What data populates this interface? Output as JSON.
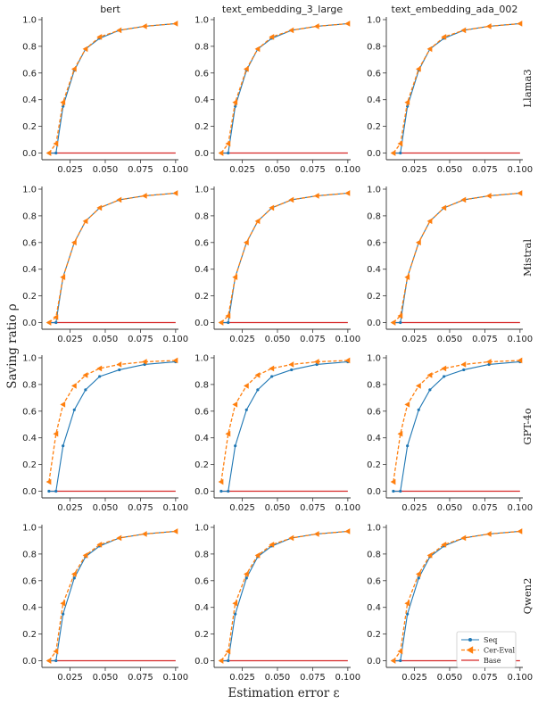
{
  "figure": {
    "xlabel": "Estimation error ε",
    "ylabel": "Saving ratio ρ"
  },
  "colors": {
    "seq": "#1f77b4",
    "cer_eval": "#ff7f0e",
    "base": "#d62728"
  },
  "columns": [
    "bert",
    "text_embedding_3_large",
    "text_embedding_ada_002"
  ],
  "rows": [
    "Llama3",
    "Mistral",
    "GPT-4o",
    "Qwen2"
  ],
  "legend": {
    "placement": "lower-right of bottom-right panel",
    "entries": [
      "Seq",
      "Cer-Eval",
      "Base"
    ]
  },
  "chart_data": {
    "type": "line",
    "layout": "4x3 small multiples",
    "xlim": [
      0.005,
      0.102
    ],
    "ylim": [
      -0.05,
      1.02
    ],
    "x_ticks": [
      "0.025",
      "0.050",
      "0.075",
      "0.100"
    ],
    "x_tick_values": [
      0.025,
      0.05,
      0.075,
      0.1
    ],
    "y_ticks": [
      "0.0",
      "0.2",
      "0.4",
      "0.6",
      "0.8",
      "1.0"
    ],
    "y_tick_values": [
      0,
      0.2,
      0.4,
      0.6,
      0.8,
      1.0
    ],
    "grid": false,
    "x": [
      0.01,
      0.015,
      0.02,
      0.028,
      0.036,
      0.046,
      0.06,
      0.078,
      0.1
    ],
    "panels": [
      {
        "row": "Llama3",
        "column": "bert",
        "series": [
          {
            "name": "Seq",
            "values": [
              0.0,
              0.0,
              0.35,
              0.62,
              0.78,
              0.86,
              0.92,
              0.95,
              0.97
            ]
          },
          {
            "name": "Cer-Eval",
            "values": [
              0.0,
              0.07,
              0.38,
              0.63,
              0.78,
              0.87,
              0.92,
              0.95,
              0.97
            ]
          },
          {
            "name": "Base",
            "values": [
              0.0,
              0.0,
              0.0,
              0.0,
              0.0,
              0.0,
              0.0,
              0.0,
              0.0
            ]
          }
        ]
      },
      {
        "row": "Llama3",
        "column": "text_embedding_3_large",
        "series": [
          {
            "name": "Seq",
            "values": [
              0.0,
              0.0,
              0.35,
              0.62,
              0.78,
              0.86,
              0.92,
              0.95,
              0.97
            ]
          },
          {
            "name": "Cer-Eval",
            "values": [
              0.0,
              0.07,
              0.38,
              0.63,
              0.78,
              0.87,
              0.92,
              0.95,
              0.97
            ]
          },
          {
            "name": "Base",
            "values": [
              0.0,
              0.0,
              0.0,
              0.0,
              0.0,
              0.0,
              0.0,
              0.0,
              0.0
            ]
          }
        ]
      },
      {
        "row": "Llama3",
        "column": "text_embedding_ada_002",
        "series": [
          {
            "name": "Seq",
            "values": [
              0.0,
              0.0,
              0.35,
              0.62,
              0.78,
              0.86,
              0.92,
              0.95,
              0.97
            ]
          },
          {
            "name": "Cer-Eval",
            "values": [
              0.0,
              0.07,
              0.38,
              0.63,
              0.78,
              0.87,
              0.92,
              0.95,
              0.97
            ]
          },
          {
            "name": "Base",
            "values": [
              0.0,
              0.0,
              0.0,
              0.0,
              0.0,
              0.0,
              0.0,
              0.0,
              0.0
            ]
          }
        ]
      },
      {
        "row": "Mistral",
        "column": "bert",
        "series": [
          {
            "name": "Seq",
            "values": [
              0.0,
              0.0,
              0.34,
              0.6,
              0.76,
              0.86,
              0.92,
              0.95,
              0.97
            ]
          },
          {
            "name": "Cer-Eval",
            "values": [
              0.0,
              0.04,
              0.34,
              0.6,
              0.76,
              0.86,
              0.92,
              0.95,
              0.97
            ]
          },
          {
            "name": "Base",
            "values": [
              0.0,
              0.0,
              0.0,
              0.0,
              0.0,
              0.0,
              0.0,
              0.0,
              0.0
            ]
          }
        ]
      },
      {
        "row": "Mistral",
        "column": "text_embedding_3_large",
        "series": [
          {
            "name": "Seq",
            "values": [
              0.0,
              0.0,
              0.34,
              0.6,
              0.76,
              0.86,
              0.92,
              0.95,
              0.97
            ]
          },
          {
            "name": "Cer-Eval",
            "values": [
              0.0,
              0.05,
              0.34,
              0.6,
              0.76,
              0.86,
              0.92,
              0.95,
              0.97
            ]
          },
          {
            "name": "Base",
            "values": [
              0.0,
              0.0,
              0.0,
              0.0,
              0.0,
              0.0,
              0.0,
              0.0,
              0.0
            ]
          }
        ]
      },
      {
        "row": "Mistral",
        "column": "text_embedding_ada_002",
        "series": [
          {
            "name": "Seq",
            "values": [
              0.0,
              0.0,
              0.34,
              0.6,
              0.76,
              0.86,
              0.92,
              0.95,
              0.97
            ]
          },
          {
            "name": "Cer-Eval",
            "values": [
              0.0,
              0.05,
              0.34,
              0.6,
              0.76,
              0.86,
              0.92,
              0.95,
              0.97
            ]
          },
          {
            "name": "Base",
            "values": [
              0.0,
              0.0,
              0.0,
              0.0,
              0.0,
              0.0,
              0.0,
              0.0,
              0.0
            ]
          }
        ]
      },
      {
        "row": "GPT-4o",
        "column": "bert",
        "series": [
          {
            "name": "Seq",
            "values": [
              0.0,
              0.0,
              0.34,
              0.61,
              0.76,
              0.86,
              0.91,
              0.95,
              0.97
            ]
          },
          {
            "name": "Cer-Eval",
            "values": [
              0.07,
              0.43,
              0.65,
              0.79,
              0.87,
              0.92,
              0.95,
              0.97,
              0.98
            ]
          },
          {
            "name": "Base",
            "values": [
              0.0,
              0.0,
              0.0,
              0.0,
              0.0,
              0.0,
              0.0,
              0.0,
              0.0
            ]
          }
        ]
      },
      {
        "row": "GPT-4o",
        "column": "text_embedding_3_large",
        "series": [
          {
            "name": "Seq",
            "values": [
              0.0,
              0.0,
              0.34,
              0.61,
              0.76,
              0.86,
              0.91,
              0.95,
              0.97
            ]
          },
          {
            "name": "Cer-Eval",
            "values": [
              0.07,
              0.43,
              0.65,
              0.79,
              0.87,
              0.92,
              0.95,
              0.97,
              0.98
            ]
          },
          {
            "name": "Base",
            "values": [
              0.0,
              0.0,
              0.0,
              0.0,
              0.0,
              0.0,
              0.0,
              0.0,
              0.0
            ]
          }
        ]
      },
      {
        "row": "GPT-4o",
        "column": "text_embedding_ada_002",
        "series": [
          {
            "name": "Seq",
            "values": [
              0.0,
              0.0,
              0.34,
              0.61,
              0.76,
              0.86,
              0.91,
              0.95,
              0.97
            ]
          },
          {
            "name": "Cer-Eval",
            "values": [
              0.07,
              0.43,
              0.65,
              0.79,
              0.87,
              0.92,
              0.95,
              0.97,
              0.98
            ]
          },
          {
            "name": "Base",
            "values": [
              0.0,
              0.0,
              0.0,
              0.0,
              0.0,
              0.0,
              0.0,
              0.0,
              0.0
            ]
          }
        ]
      },
      {
        "row": "Qwen2",
        "column": "bert",
        "series": [
          {
            "name": "Seq",
            "values": [
              0.0,
              0.0,
              0.35,
              0.62,
              0.78,
              0.86,
              0.92,
              0.95,
              0.97
            ]
          },
          {
            "name": "Cer-Eval",
            "values": [
              0.0,
              0.07,
              0.43,
              0.65,
              0.79,
              0.87,
              0.92,
              0.95,
              0.97
            ]
          },
          {
            "name": "Base",
            "values": [
              0.0,
              0.0,
              0.0,
              0.0,
              0.0,
              0.0,
              0.0,
              0.0,
              0.0
            ]
          }
        ]
      },
      {
        "row": "Qwen2",
        "column": "text_embedding_3_large",
        "series": [
          {
            "name": "Seq",
            "values": [
              0.0,
              0.0,
              0.35,
              0.62,
              0.78,
              0.86,
              0.92,
              0.95,
              0.97
            ]
          },
          {
            "name": "Cer-Eval",
            "values": [
              0.0,
              0.07,
              0.43,
              0.65,
              0.79,
              0.87,
              0.92,
              0.95,
              0.97
            ]
          },
          {
            "name": "Base",
            "values": [
              0.0,
              0.0,
              0.0,
              0.0,
              0.0,
              0.0,
              0.0,
              0.0,
              0.0
            ]
          }
        ]
      },
      {
        "row": "Qwen2",
        "column": "text_embedding_ada_002",
        "series": [
          {
            "name": "Seq",
            "values": [
              0.0,
              0.0,
              0.35,
              0.62,
              0.78,
              0.86,
              0.92,
              0.95,
              0.97
            ]
          },
          {
            "name": "Cer-Eval",
            "values": [
              0.0,
              0.07,
              0.43,
              0.65,
              0.79,
              0.87,
              0.92,
              0.95,
              0.97
            ]
          },
          {
            "name": "Base",
            "values": [
              0.0,
              0.0,
              0.0,
              0.0,
              0.0,
              0.0,
              0.0,
              0.0,
              0.0
            ]
          }
        ]
      }
    ]
  }
}
